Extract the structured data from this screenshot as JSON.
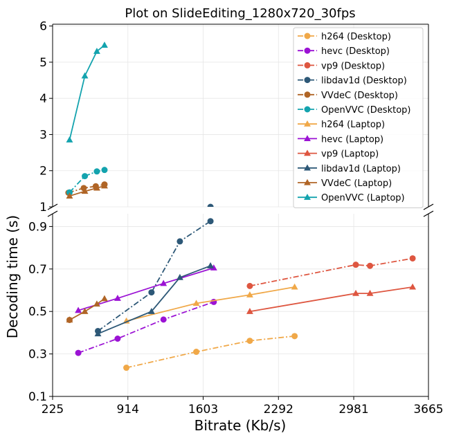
{
  "chart_data": {
    "type": "line",
    "title": "Plot on SlideEditing_1280x720_30fps",
    "xlabel": "Bitrate (Kb/s)",
    "ylabel": "Decoding time (s)",
    "x_ticks": [
      225,
      914,
      1603,
      2292,
      2981,
      3665
    ],
    "xlim": [
      225,
      3665
    ],
    "y_axis_broken": true,
    "upper_panel": {
      "ylim": [
        1,
        6.05
      ],
      "yticks": [
        1,
        2,
        3,
        4,
        5,
        6
      ]
    },
    "lower_panel": {
      "ylim": [
        0.1,
        0.96
      ],
      "yticks": [
        0.1,
        0.3,
        0.5,
        0.7,
        0.9
      ]
    },
    "grid": true,
    "legend_position": "upper-right",
    "series": [
      {
        "name": "h264 (Desktop)",
        "color": "#F0A848",
        "marker": "circle",
        "dash": "dashdot",
        "x": [
          900,
          1540,
          2030,
          2440
        ],
        "y": [
          0.235,
          0.31,
          0.362,
          0.384
        ]
      },
      {
        "name": "hevc (Desktop)",
        "color": "#9B12D4",
        "marker": "circle",
        "dash": "dashdot",
        "x": [
          460,
          820,
          1240,
          1700
        ],
        "y": [
          0.305,
          0.372,
          0.462,
          0.545
        ]
      },
      {
        "name": "vp9 (Desktop)",
        "color": "#DE5640",
        "marker": "circle",
        "dash": "dashdot",
        "x": [
          2030,
          3000,
          3130,
          3520
        ],
        "y": [
          0.62,
          0.72,
          0.715,
          0.75
        ]
      },
      {
        "name": "libdav1d (Desktop)",
        "color": "#2D5877",
        "marker": "circle",
        "dash": "dashdot",
        "x": [
          640,
          1130,
          1390,
          1670
        ],
        "y": [
          0.408,
          0.59,
          0.83,
          0.925
        ]
      },
      {
        "name": "VVdeC (Desktop)",
        "color": "#B06526",
        "marker": "circle",
        "dash": "dashdot",
        "x": [
          370,
          510,
          620,
          700
        ],
        "y": [
          1.39,
          1.52,
          1.57,
          1.62
        ]
      },
      {
        "name": "OpenVVC (Desktop)",
        "color": "#13A3AE",
        "marker": "circle",
        "dash": "dashdot",
        "x": [
          380,
          520,
          630,
          700
        ],
        "y": [
          1.4,
          1.85,
          1.98,
          2.02
        ]
      },
      {
        "name": "h264 (Laptop)",
        "color": "#F0A848",
        "marker": "triangle",
        "dash": "solid",
        "x": [
          900,
          1540,
          2030,
          2440
        ],
        "y": [
          0.455,
          0.538,
          0.578,
          0.615
        ]
      },
      {
        "name": "hevc (Laptop)",
        "color": "#9B12D4",
        "marker": "triangle",
        "dash": "solid",
        "x": [
          460,
          820,
          1240,
          1700
        ],
        "y": [
          0.505,
          0.562,
          0.632,
          0.705
        ]
      },
      {
        "name": "vp9 (Laptop)",
        "color": "#DE5640",
        "marker": "triangle",
        "dash": "solid",
        "x": [
          2030,
          3000,
          3130,
          3520
        ],
        "y": [
          0.5,
          0.585,
          0.585,
          0.615
        ]
      },
      {
        "name": "libdav1d (Laptop)",
        "color": "#2D5877",
        "marker": "triangle",
        "dash": "solid",
        "x": [
          640,
          1130,
          1390,
          1670
        ],
        "y": [
          0.395,
          0.5,
          0.66,
          0.715
        ]
      },
      {
        "name": "VVdeC (Laptop)",
        "color": "#B06526",
        "marker": "triangle",
        "dash": "solid",
        "x": [
          380,
          520,
          630,
          700
        ],
        "y": [
          1.3,
          1.43,
          1.52,
          1.58
        ]
      },
      {
        "name": "OpenVVC (Laptop)",
        "color": "#13A3AE",
        "marker": "triangle",
        "dash": "solid",
        "x": [
          380,
          520,
          630,
          700
        ],
        "y": [
          2.85,
          4.62,
          5.3,
          5.47
        ]
      }
    ],
    "extra_points": [
      {
        "series": "VVdeC (Laptop)",
        "x": [
          380,
          520,
          630,
          700
        ],
        "y": [
          0.46,
          0.5,
          0.535,
          0.56
        ]
      },
      {
        "series": "VVdeC (Desktop)",
        "x": [
          380
        ],
        "y": [
          0.46
        ]
      }
    ]
  }
}
